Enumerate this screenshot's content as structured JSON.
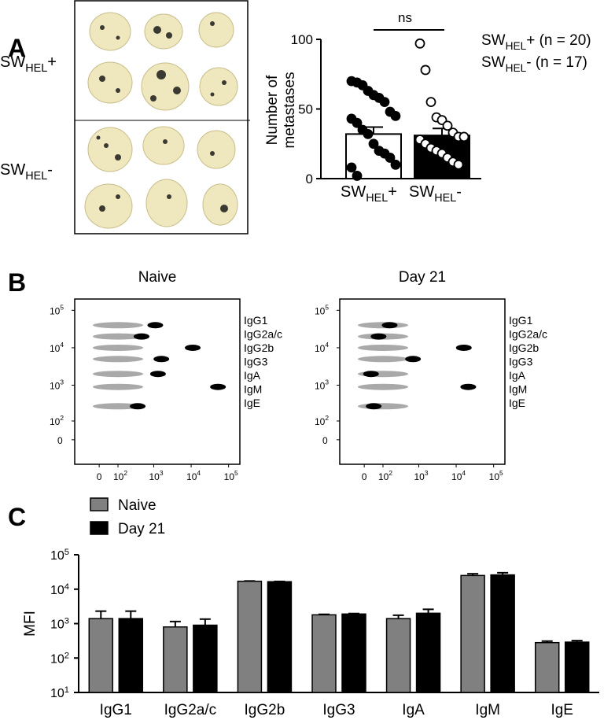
{
  "panel_labels": [
    "A",
    "B",
    "C"
  ],
  "photo": {
    "row_labels": [
      [
        "SW",
        "HEL",
        "+"
      ],
      [
        "SW",
        "HEL",
        "-"
      ]
    ]
  },
  "chart_data": [
    {
      "type": "bar-scatter",
      "y_label": [
        "Number of",
        "metastases"
      ],
      "annotation": "ns",
      "categories": [
        [
          "SW",
          "HEL",
          "+"
        ],
        [
          "SW",
          "HEL",
          "-"
        ]
      ],
      "legend": [
        [
          "SW",
          "HEL",
          "+ (n = 20)"
        ],
        [
          "SW",
          "HEL",
          "- (n = 17)"
        ]
      ],
      "values": [
        32,
        31
      ],
      "errors": [
        5,
        5
      ],
      "point_fill": [
        "#000000",
        "#ffffff"
      ],
      "points": [
        [
          70,
          69,
          67,
          63,
          60,
          58,
          55,
          48,
          45,
          43,
          40,
          35,
          32,
          25,
          20,
          18,
          15,
          10,
          8,
          2
        ],
        [
          97,
          78,
          55,
          44,
          42,
          38,
          33,
          30,
          30,
          28,
          25,
          22,
          20,
          18,
          15,
          12,
          10
        ]
      ],
      "ylim": [
        0,
        100
      ],
      "yticks": [
        0,
        50,
        100
      ]
    },
    {
      "type": "flow",
      "title": "Naive",
      "categories": [
        "IgG1",
        "IgG2a/c",
        "IgG2b",
        "IgG3",
        "IgA",
        "IgM",
        "IgE"
      ],
      "x": [
        1100,
        470,
        11000,
        1600,
        1300,
        52000,
        370
      ],
      "y": [
        40000,
        20000,
        10000,
        5000,
        2000,
        900,
        270
      ],
      "xlim": [
        -150,
        200000
      ],
      "ylim": [
        -150,
        200000
      ],
      "xticks": [
        0,
        {
          "value": 100,
          "label": [
            "10",
            "2"
          ]
        },
        {
          "value": 1000,
          "label": [
            "10",
            "3"
          ]
        },
        {
          "value": 10000,
          "label": [
            "10",
            "4"
          ]
        },
        {
          "value": 100000,
          "label": [
            "10",
            "5"
          ]
        }
      ],
      "yticks": [
        0,
        {
          "value": 100,
          "label": [
            "10",
            "2"
          ]
        },
        {
          "value": 1000,
          "label": [
            "10",
            "3"
          ]
        },
        {
          "value": 10000,
          "label": [
            "10",
            "4"
          ]
        },
        {
          "value": 100000,
          "label": [
            "10",
            "5"
          ]
        }
      ]
    },
    {
      "type": "flow",
      "title": "Day 21",
      "categories": [
        "IgG1",
        "IgG2a/c",
        "IgG2b",
        "IgG3",
        "IgA",
        "IgM",
        "IgE"
      ],
      "x": [
        160,
        70,
        16000,
        700,
        30,
        21000,
        43
      ],
      "y": [
        40000,
        20000,
        10000,
        5000,
        2000,
        900,
        270
      ],
      "xlim": [
        -150,
        200000
      ],
      "ylim": [
        -150,
        200000
      ],
      "xticks": [
        0,
        {
          "value": 100,
          "label": [
            "10",
            "2"
          ]
        },
        {
          "value": 1000,
          "label": [
            "10",
            "3"
          ]
        },
        {
          "value": 10000,
          "label": [
            "10",
            "4"
          ]
        },
        {
          "value": 100000,
          "label": [
            "10",
            "5"
          ]
        }
      ],
      "yticks": [
        0,
        {
          "value": 100,
          "label": [
            "10",
            "2"
          ]
        },
        {
          "value": 1000,
          "label": [
            "10",
            "3"
          ]
        },
        {
          "value": 10000,
          "label": [
            "10",
            "4"
          ]
        },
        {
          "value": 100000,
          "label": [
            "10",
            "5"
          ]
        }
      ]
    },
    {
      "type": "bar",
      "y_label": "MFI",
      "log_scale": true,
      "categories": [
        "IgG1",
        "IgG2a/c",
        "IgG2b",
        "IgG3",
        "IgA",
        "IgM",
        "IgE"
      ],
      "series": [
        {
          "name": "Naive",
          "color": "#808080",
          "values": [
            1400,
            800,
            17000,
            1800,
            1400,
            25000,
            280
          ],
          "errors": [
            900,
            350,
            300,
            60,
            350,
            3000,
            30
          ]
        },
        {
          "name": "Day 21",
          "color": "#000000",
          "values": [
            1400,
            900,
            16500,
            1900,
            2000,
            26000,
            290
          ],
          "errors": [
            900,
            450,
            300,
            60,
            600,
            4000,
            30
          ]
        }
      ],
      "ylim": [
        10,
        100000
      ],
      "yticks": [
        {
          "value": 10,
          "label": [
            "10",
            "1"
          ]
        },
        {
          "value": 100,
          "label": [
            "10",
            "2"
          ]
        },
        {
          "value": 1000,
          "label": [
            "10",
            "3"
          ]
        },
        {
          "value": 10000,
          "label": [
            "10",
            "4"
          ]
        },
        {
          "value": 100000,
          "label": [
            "10",
            "5"
          ]
        }
      ]
    }
  ]
}
